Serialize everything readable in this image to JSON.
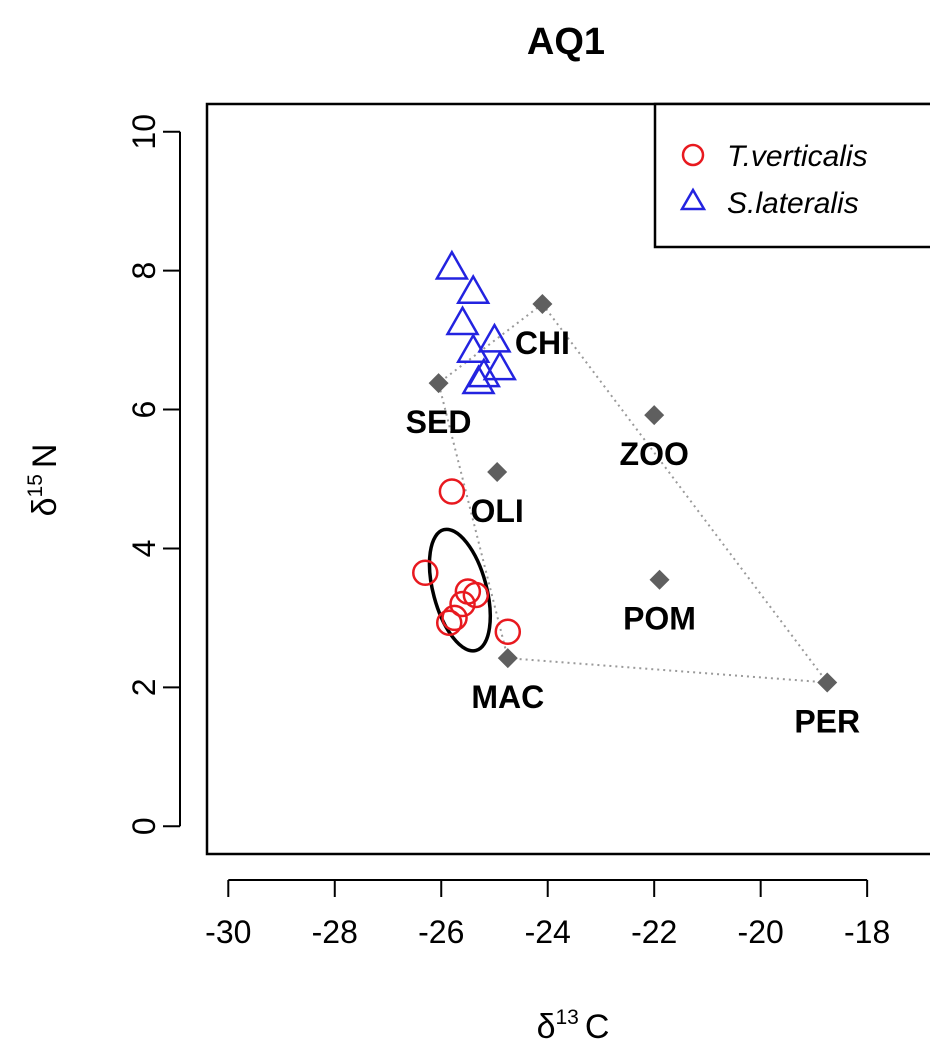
{
  "chart_data": {
    "type": "scatter",
    "title": "AQ1",
    "xlabel": {
      "symbol": "δ",
      "sup": "13",
      "letter": "C"
    },
    "ylabel": {
      "symbol": "δ",
      "sup": "15",
      "letter": "N"
    },
    "xlim": [
      -30.4,
      -16.5
    ],
    "ylim": [
      -0.4,
      10.4
    ],
    "xticks": [
      -30,
      -28,
      -26,
      -24,
      -22,
      -20,
      -18
    ],
    "xtick_labels": [
      "-30",
      "-28",
      "-26",
      "-24",
      "-22",
      "-20",
      "-18"
    ],
    "yticks": [
      0,
      2,
      4,
      6,
      8,
      10
    ],
    "ytick_labels": [
      "0",
      "2",
      "4",
      "6",
      "8",
      "10"
    ],
    "grid": false,
    "legend_position": "top-right",
    "series": [
      {
        "name": "T.verticalis",
        "marker": "circle",
        "color": "#e8191f",
        "points": [
          [
            -25.8,
            4.82
          ],
          [
            -26.3,
            3.65
          ],
          [
            -25.5,
            3.38
          ],
          [
            -25.35,
            3.33
          ],
          [
            -25.6,
            3.2
          ],
          [
            -25.75,
            3.0
          ],
          [
            -25.85,
            2.93
          ],
          [
            -24.75,
            2.8
          ]
        ]
      },
      {
        "name": "S.lateralis",
        "marker": "triangle",
        "color": "#2323e0",
        "points": [
          [
            -25.8,
            8.05
          ],
          [
            -25.4,
            7.7
          ],
          [
            -25.6,
            7.25
          ],
          [
            -25.0,
            7.0
          ],
          [
            -25.4,
            6.85
          ],
          [
            -24.9,
            6.6
          ],
          [
            -25.2,
            6.5
          ],
          [
            -25.3,
            6.4
          ]
        ]
      }
    ],
    "sources": {
      "color": "#5f5f5f",
      "points": [
        {
          "label": "CHI",
          "x": -24.1,
          "y": 7.52
        },
        {
          "label": "SED",
          "x": -26.05,
          "y": 6.38
        },
        {
          "label": "ZOO",
          "x": -22.0,
          "y": 5.92
        },
        {
          "label": "OLI",
          "x": -24.95,
          "y": 5.1
        },
        {
          "label": "POM",
          "x": -21.9,
          "y": 3.55
        },
        {
          "label": "MAC",
          "x": -24.75,
          "y": 2.42
        },
        {
          "label": "PER",
          "x": -18.75,
          "y": 2.07
        }
      ],
      "hull_order": [
        "CHI",
        "SED",
        "MAC",
        "PER"
      ]
    },
    "ellipse": {
      "center": [
        -25.65,
        3.4
      ],
      "semi_x": 0.5,
      "semi_y": 0.9,
      "rotation_deg": -15,
      "color": "#000000"
    }
  }
}
